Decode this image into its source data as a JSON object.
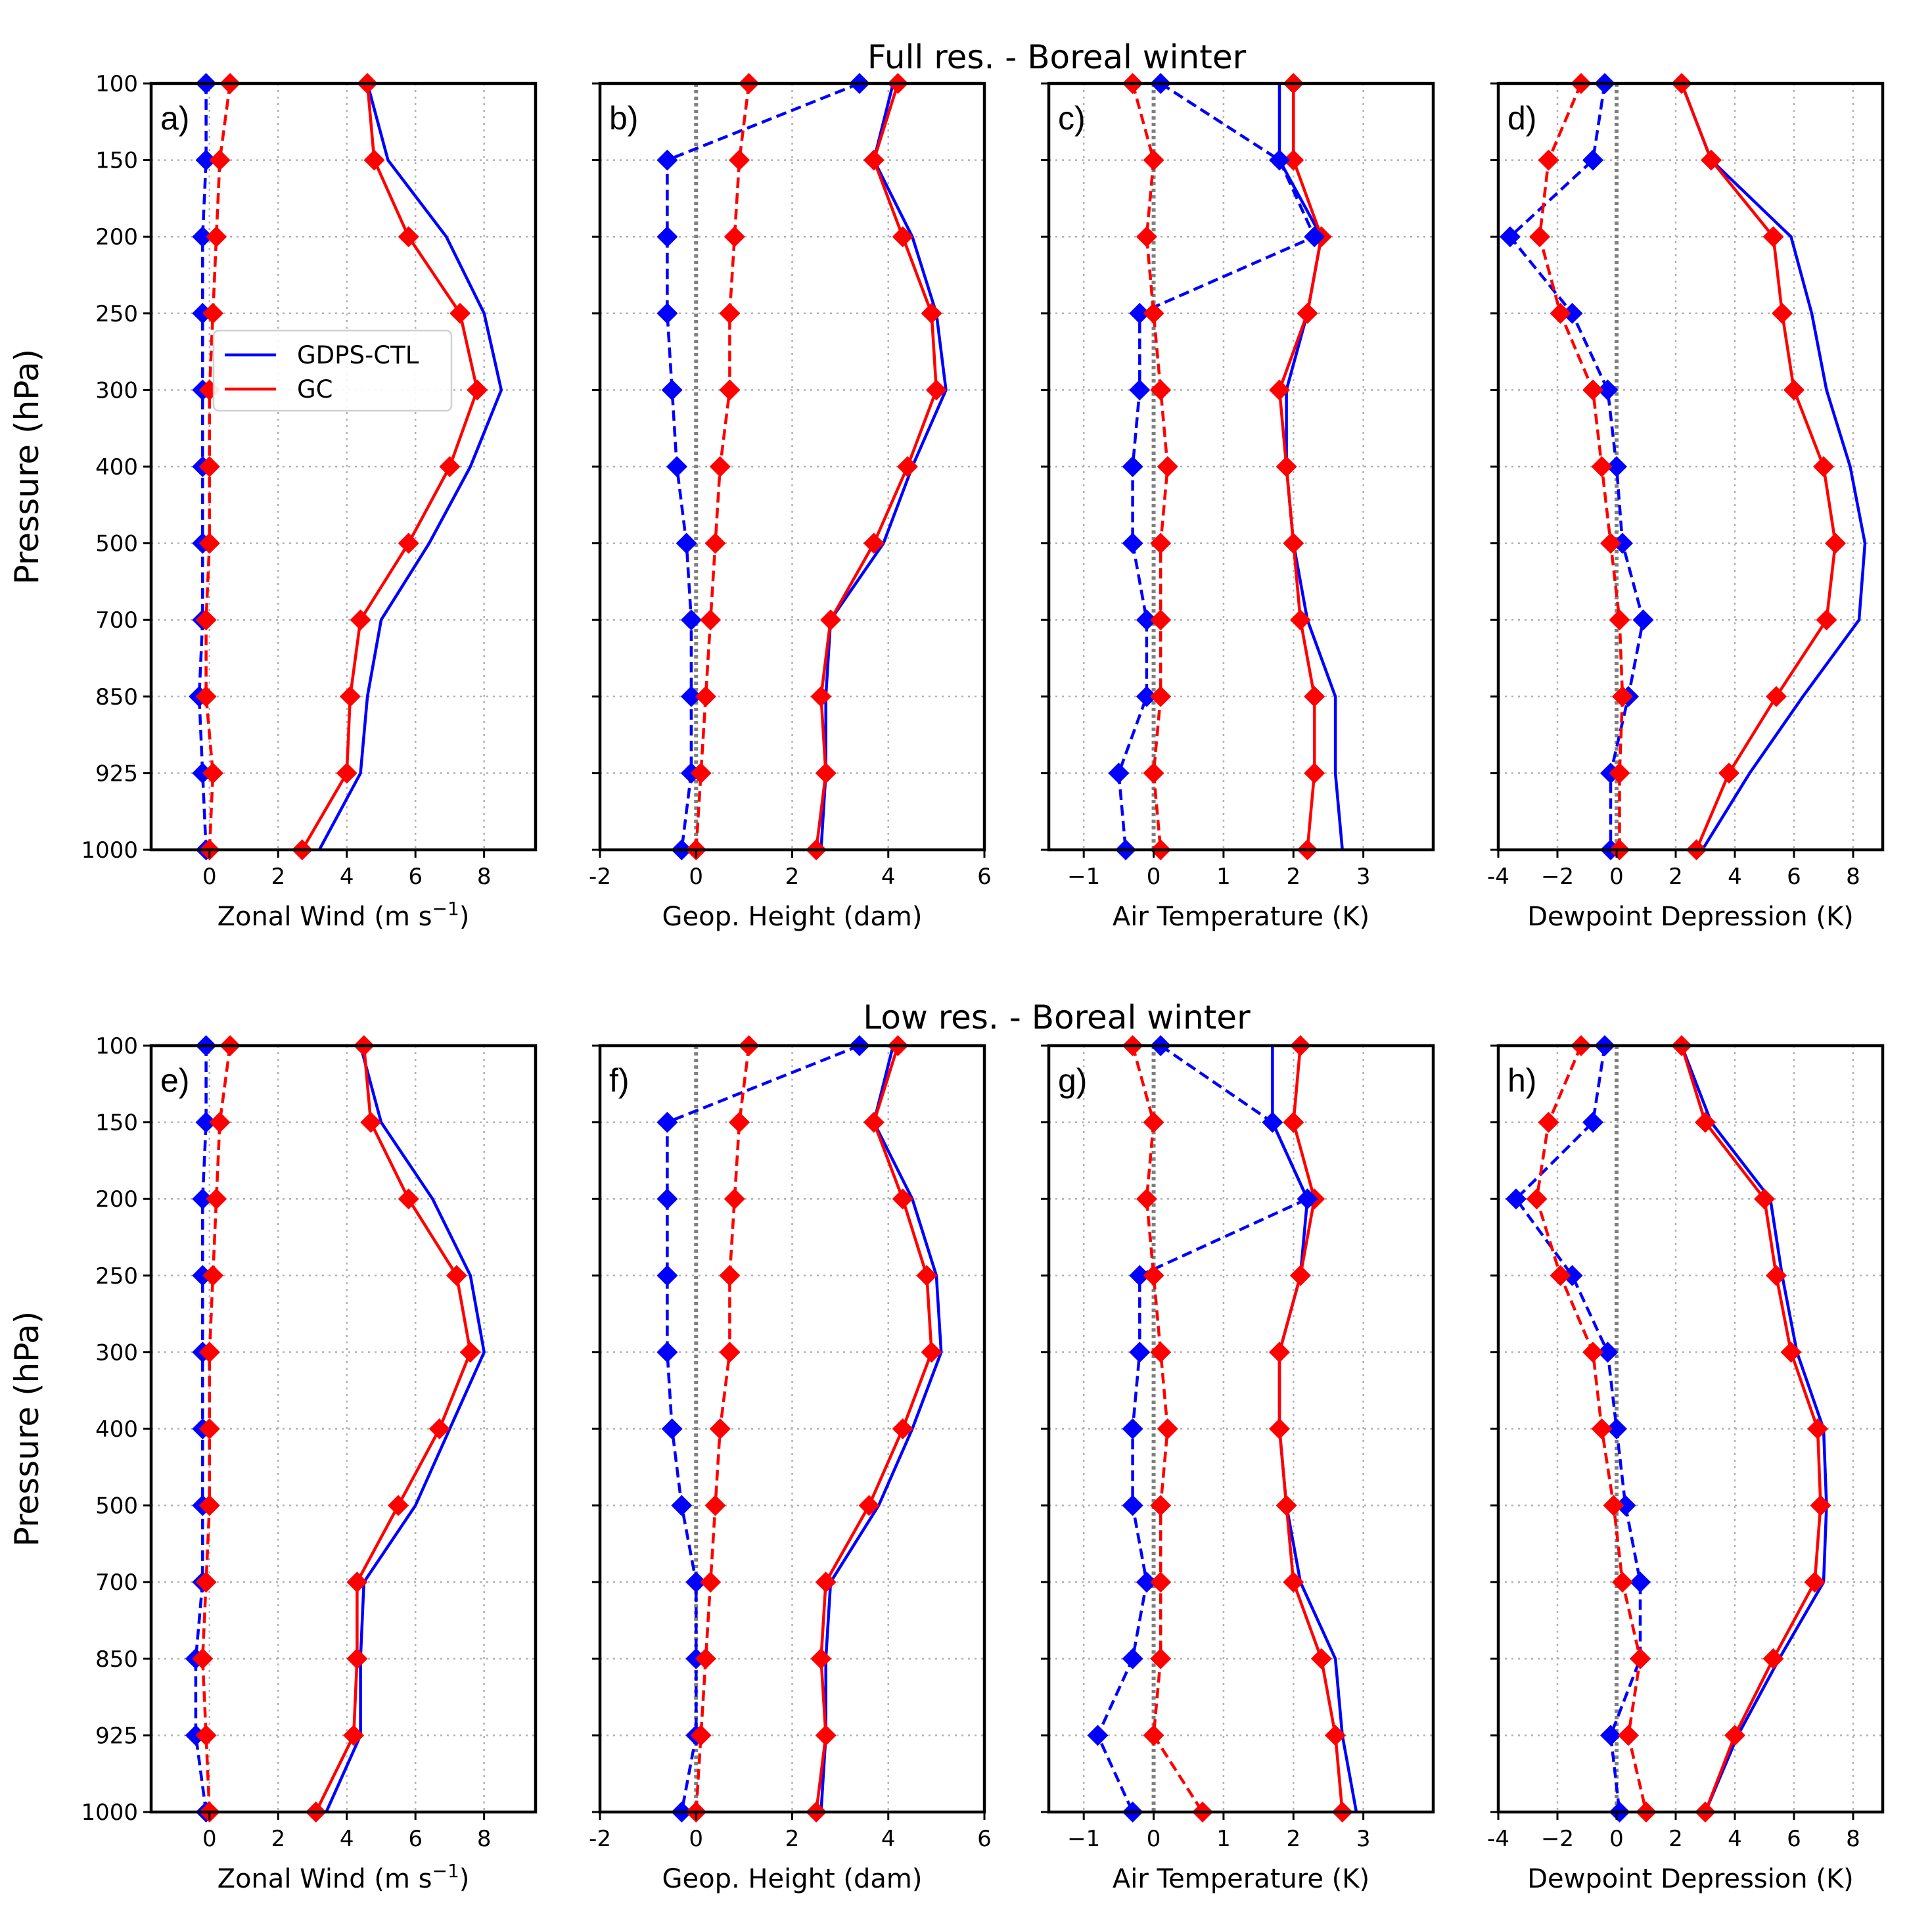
{
  "figure": {
    "row_titles": [
      "Full res. - Boreal winter",
      "Low res. - Boreal winter"
    ],
    "ylabel": "Pressure (hPa)",
    "pressure_levels": [
      100,
      150,
      200,
      250,
      300,
      400,
      500,
      700,
      850,
      925,
      1000
    ],
    "legend": [
      {
        "name": "GDPS-CTL",
        "color": "#0000ff"
      },
      {
        "name": "GC",
        "color": "#ff0000"
      }
    ],
    "colors": {
      "ctl": "#0000ff",
      "gc": "#ff0000",
      "zero": "#808080",
      "grid": "#b0b0b0"
    }
  },
  "chart_data": [
    {
      "type": "line",
      "panel": "a)",
      "row": 0,
      "col": 0,
      "xlabel": "Zonal Wind (m s",
      "xlabel_sup": "−1",
      "xlabel_end": ")",
      "xlim": [
        -1.7,
        9.5
      ],
      "xticks": [
        0,
        2,
        4,
        6,
        8
      ],
      "xtick_labels": [
        "0",
        "2",
        "4",
        "6",
        "8"
      ],
      "zero_line": false,
      "series": [
        {
          "name": "GDPS-CTL stdev",
          "color": "blue",
          "dash": false,
          "markers": false,
          "values": [
            4.6,
            5.2,
            6.9,
            8.0,
            8.5,
            7.6,
            6.4,
            5.0,
            4.6,
            4.4,
            3.2
          ]
        },
        {
          "name": "GC stdev",
          "color": "red",
          "dash": false,
          "markers": true,
          "values": [
            4.6,
            4.8,
            5.8,
            7.3,
            7.8,
            7.0,
            5.8,
            4.4,
            4.1,
            4.0,
            2.7
          ]
        },
        {
          "name": "GDPS-CTL bias",
          "color": "blue",
          "dash": true,
          "markers": true,
          "values": [
            -0.1,
            -0.1,
            -0.2,
            -0.2,
            -0.2,
            -0.2,
            -0.2,
            -0.2,
            -0.3,
            -0.2,
            -0.1
          ]
        },
        {
          "name": "GC bias",
          "color": "red",
          "dash": true,
          "markers": true,
          "values": [
            0.6,
            0.3,
            0.2,
            0.1,
            0.0,
            0.0,
            0.0,
            -0.1,
            -0.1,
            0.1,
            0.0
          ]
        }
      ]
    },
    {
      "type": "line",
      "panel": "b)",
      "row": 0,
      "col": 1,
      "xlabel": "Geop. Height (dam)",
      "xlim": [
        -2,
        6
      ],
      "xticks": [
        -2,
        0,
        2,
        4,
        6
      ],
      "xtick_labels": [
        "-2",
        "0",
        "2",
        "4",
        "6"
      ],
      "zero_line": true,
      "series": [
        {
          "name": "GDPS-CTL stdev",
          "color": "blue",
          "dash": false,
          "markers": false,
          "values": [
            4.1,
            3.7,
            4.5,
            5.0,
            5.2,
            4.5,
            3.9,
            2.8,
            2.7,
            2.7,
            2.6
          ]
        },
        {
          "name": "GC stdev",
          "color": "red",
          "dash": false,
          "markers": true,
          "values": [
            4.2,
            3.7,
            4.3,
            4.9,
            5.0,
            4.4,
            3.7,
            2.8,
            2.6,
            2.7,
            2.5
          ]
        },
        {
          "name": "GDPS-CTL bias",
          "color": "blue",
          "dash": true,
          "markers": true,
          "values": [
            3.4,
            -0.6,
            -0.6,
            -0.6,
            -0.5,
            -0.4,
            -0.2,
            -0.1,
            -0.1,
            -0.1,
            -0.3
          ]
        },
        {
          "name": "GC bias",
          "color": "red",
          "dash": true,
          "markers": true,
          "values": [
            1.1,
            0.9,
            0.8,
            0.7,
            0.7,
            0.5,
            0.4,
            0.3,
            0.2,
            0.1,
            0.0
          ]
        }
      ]
    },
    {
      "type": "line",
      "panel": "c)",
      "row": 0,
      "col": 2,
      "xlabel": "Air Temperature (K)",
      "xlim": [
        -1.5,
        4.0
      ],
      "xticks": [
        -1,
        0,
        1,
        2,
        3
      ],
      "xtick_labels": [
        "−1",
        "0",
        "1",
        "2",
        "3"
      ],
      "zero_line": true,
      "series": [
        {
          "name": "GDPS-CTL stdev",
          "color": "blue",
          "dash": false,
          "markers": false,
          "values": [
            1.8,
            1.8,
            2.4,
            2.2,
            1.9,
            1.9,
            2.0,
            2.2,
            2.6,
            2.6,
            2.7
          ]
        },
        {
          "name": "GC stdev",
          "color": "red",
          "dash": false,
          "markers": true,
          "values": [
            2.0,
            2.0,
            2.4,
            2.2,
            1.8,
            1.9,
            2.0,
            2.1,
            2.3,
            2.3,
            2.2
          ]
        },
        {
          "name": "GDPS-CTL bias",
          "color": "blue",
          "dash": true,
          "markers": true,
          "values": [
            0.1,
            1.8,
            2.3,
            -0.2,
            -0.2,
            -0.3,
            -0.3,
            -0.1,
            -0.1,
            -0.5,
            -0.4
          ]
        },
        {
          "name": "GC bias",
          "color": "red",
          "dash": true,
          "markers": true,
          "values": [
            -0.3,
            0.0,
            -0.1,
            0.0,
            0.1,
            0.2,
            0.1,
            0.1,
            0.1,
            0.0,
            0.1
          ]
        }
      ]
    },
    {
      "type": "line",
      "panel": "d)",
      "row": 0,
      "col": 3,
      "xlabel": "Dewpoint Depression (K)",
      "xlim": [
        -4,
        9
      ],
      "xticks": [
        -4,
        -2,
        0,
        2,
        4,
        6,
        8
      ],
      "xtick_labels": [
        "-4",
        "−2",
        "0",
        "2",
        "4",
        "6",
        "8"
      ],
      "zero_line": true,
      "series": [
        {
          "name": "GDPS-CTL stdev",
          "color": "blue",
          "dash": false,
          "markers": false,
          "values": [
            2.2,
            3.2,
            5.9,
            6.6,
            7.1,
            7.9,
            8.4,
            8.2,
            6.3,
            4.5,
            2.9
          ]
        },
        {
          "name": "GC stdev",
          "color": "red",
          "dash": false,
          "markers": true,
          "values": [
            2.2,
            3.2,
            5.3,
            5.6,
            6.0,
            7.0,
            7.4,
            7.1,
            5.4,
            3.8,
            2.7
          ]
        },
        {
          "name": "GDPS-CTL bias",
          "color": "blue",
          "dash": true,
          "markers": true,
          "values": [
            -0.4,
            -0.8,
            -3.6,
            -1.5,
            -0.3,
            0.0,
            0.2,
            0.9,
            0.4,
            -0.2,
            -0.2
          ]
        },
        {
          "name": "GC bias",
          "color": "red",
          "dash": true,
          "markers": true,
          "values": [
            -1.2,
            -2.3,
            -2.6,
            -1.9,
            -0.8,
            -0.5,
            -0.2,
            0.1,
            0.2,
            0.1,
            0.1
          ]
        }
      ]
    },
    {
      "type": "line",
      "panel": "e)",
      "row": 1,
      "col": 0,
      "xlabel": "Zonal Wind (m s",
      "xlabel_sup": "−1",
      "xlabel_end": ")",
      "xlim": [
        -1.7,
        9.5
      ],
      "xticks": [
        0,
        2,
        4,
        6,
        8
      ],
      "xtick_labels": [
        "0",
        "2",
        "4",
        "6",
        "8"
      ],
      "zero_line": false,
      "series": [
        {
          "name": "GDPS-CTL stdev",
          "color": "blue",
          "dash": false,
          "markers": false,
          "values": [
            4.4,
            5.0,
            6.5,
            7.6,
            8.0,
            7.0,
            6.0,
            4.5,
            4.4,
            4.4,
            3.4
          ]
        },
        {
          "name": "GC stdev",
          "color": "red",
          "dash": false,
          "markers": true,
          "values": [
            4.5,
            4.7,
            5.8,
            7.2,
            7.6,
            6.7,
            5.5,
            4.3,
            4.3,
            4.2,
            3.1
          ]
        },
        {
          "name": "GDPS-CTL bias",
          "color": "blue",
          "dash": true,
          "markers": true,
          "values": [
            -0.1,
            -0.1,
            -0.2,
            -0.2,
            -0.2,
            -0.2,
            -0.2,
            -0.2,
            -0.4,
            -0.4,
            -0.1
          ]
        },
        {
          "name": "GC bias",
          "color": "red",
          "dash": true,
          "markers": true,
          "values": [
            0.6,
            0.3,
            0.2,
            0.1,
            0.0,
            0.0,
            0.0,
            -0.1,
            -0.2,
            -0.1,
            0.0
          ]
        }
      ]
    },
    {
      "type": "line",
      "panel": "f)",
      "row": 1,
      "col": 1,
      "xlabel": "Geop. Height (dam)",
      "xlim": [
        -2,
        6
      ],
      "xticks": [
        -2,
        0,
        2,
        4,
        6
      ],
      "xtick_labels": [
        "-2",
        "0",
        "2",
        "4",
        "6"
      ],
      "zero_line": true,
      "series": [
        {
          "name": "GDPS-CTL stdev",
          "color": "blue",
          "dash": false,
          "markers": false,
          "values": [
            4.1,
            3.7,
            4.5,
            5.0,
            5.1,
            4.5,
            3.8,
            2.8,
            2.7,
            2.7,
            2.6
          ]
        },
        {
          "name": "GC stdev",
          "color": "red",
          "dash": false,
          "markers": true,
          "values": [
            4.2,
            3.7,
            4.3,
            4.8,
            4.9,
            4.3,
            3.6,
            2.7,
            2.6,
            2.7,
            2.5
          ]
        },
        {
          "name": "GDPS-CTL bias",
          "color": "blue",
          "dash": true,
          "markers": true,
          "values": [
            3.4,
            -0.6,
            -0.6,
            -0.6,
            -0.6,
            -0.5,
            -0.3,
            0.0,
            0.0,
            0.0,
            -0.3
          ]
        },
        {
          "name": "GC bias",
          "color": "red",
          "dash": true,
          "markers": true,
          "values": [
            1.1,
            0.9,
            0.8,
            0.7,
            0.7,
            0.5,
            0.4,
            0.3,
            0.2,
            0.1,
            0.0
          ]
        }
      ]
    },
    {
      "type": "line",
      "panel": "g)",
      "row": 1,
      "col": 2,
      "xlabel": "Air Temperature (K)",
      "xlim": [
        -1.5,
        4.0
      ],
      "xticks": [
        -1,
        0,
        1,
        2,
        3
      ],
      "xtick_labels": [
        "−1",
        "0",
        "1",
        "2",
        "3"
      ],
      "zero_line": true,
      "series": [
        {
          "name": "GDPS-CTL stdev",
          "color": "blue",
          "dash": false,
          "markers": false,
          "values": [
            1.7,
            1.7,
            2.2,
            2.1,
            1.8,
            1.8,
            1.9,
            2.1,
            2.6,
            2.7,
            2.9
          ]
        },
        {
          "name": "GC stdev",
          "color": "red",
          "dash": false,
          "markers": true,
          "values": [
            2.1,
            2.0,
            2.3,
            2.1,
            1.8,
            1.8,
            1.9,
            2.0,
            2.4,
            2.6,
            2.7
          ]
        },
        {
          "name": "GDPS-CTL bias",
          "color": "blue",
          "dash": true,
          "markers": true,
          "values": [
            0.1,
            1.7,
            2.2,
            -0.2,
            -0.2,
            -0.3,
            -0.3,
            -0.1,
            -0.3,
            -0.8,
            -0.3
          ]
        },
        {
          "name": "GC bias",
          "color": "red",
          "dash": true,
          "markers": true,
          "values": [
            -0.3,
            0.0,
            -0.1,
            0.0,
            0.1,
            0.2,
            0.1,
            0.1,
            0.1,
            0.0,
            0.7
          ]
        }
      ]
    },
    {
      "type": "line",
      "panel": "h)",
      "row": 1,
      "col": 3,
      "xlabel": "Dewpoint Depression (K)",
      "xlim": [
        -4,
        9
      ],
      "xticks": [
        -4,
        -2,
        0,
        2,
        4,
        6,
        8
      ],
      "xtick_labels": [
        "-4",
        "−2",
        "0",
        "2",
        "4",
        "6",
        "8"
      ],
      "zero_line": true,
      "series": [
        {
          "name": "GDPS-CTL stdev",
          "color": "blue",
          "dash": false,
          "markers": false,
          "values": [
            2.2,
            3.2,
            5.2,
            5.6,
            6.1,
            7.0,
            7.1,
            7.0,
            5.5,
            4.1,
            3.0
          ]
        },
        {
          "name": "GC stdev",
          "color": "red",
          "dash": false,
          "markers": true,
          "values": [
            2.2,
            3.0,
            5.0,
            5.4,
            5.9,
            6.8,
            6.9,
            6.7,
            5.3,
            4.0,
            3.0
          ]
        },
        {
          "name": "GDPS-CTL bias",
          "color": "blue",
          "dash": true,
          "markers": true,
          "values": [
            -0.4,
            -0.8,
            -3.4,
            -1.5,
            -0.3,
            0.0,
            0.3,
            0.8,
            0.8,
            -0.2,
            0.1
          ]
        },
        {
          "name": "GC bias",
          "color": "red",
          "dash": true,
          "markers": true,
          "values": [
            -1.2,
            -2.3,
            -2.7,
            -1.9,
            -0.8,
            -0.5,
            -0.1,
            0.2,
            0.8,
            0.4,
            1.0
          ]
        }
      ]
    }
  ]
}
